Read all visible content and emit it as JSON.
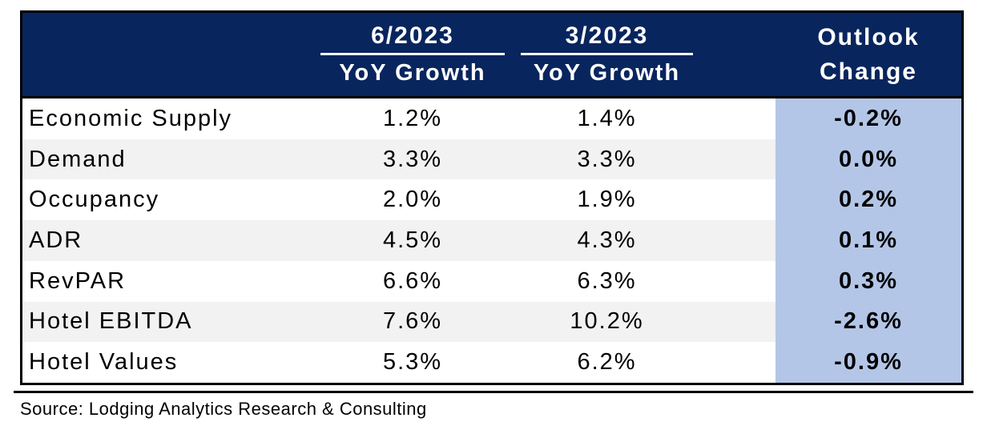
{
  "chart_data": {
    "type": "table",
    "columns": [
      "",
      "6/2023 YoY Growth",
      "3/2023 YoY Growth",
      "Outlook Change"
    ],
    "rows": [
      [
        "Economic Supply",
        "1.2%",
        "1.4%",
        "-0.2%"
      ],
      [
        "Demand",
        "3.3%",
        "3.3%",
        "0.0%"
      ],
      [
        "Occupancy",
        "2.0%",
        "1.9%",
        "0.2%"
      ],
      [
        "ADR",
        "4.5%",
        "4.3%",
        "0.1%"
      ],
      [
        "RevPAR",
        "6.6%",
        "6.3%",
        "0.3%"
      ],
      [
        "Hotel EBITDA",
        "7.6%",
        "10.2%",
        "-2.6%"
      ],
      [
        "Hotel Values",
        "5.3%",
        "6.2%",
        "-0.9%"
      ]
    ],
    "title": "",
    "legend": null,
    "notes": "Outlook Change column highlighted in light blue; alternating row striping"
  },
  "header": {
    "col_jun": {
      "period": "6/2023",
      "sub": "YoY Growth"
    },
    "col_mar": {
      "period": "3/2023",
      "sub": "YoY Growth"
    },
    "col_outlook": {
      "line1": "Outlook",
      "line2": "Change"
    }
  },
  "rows": [
    {
      "label": "Economic Supply",
      "jun": "1.2%",
      "mar": "1.4%",
      "outlook": "-0.2%"
    },
    {
      "label": "Demand",
      "jun": "3.3%",
      "mar": "3.3%",
      "outlook": "0.0%"
    },
    {
      "label": "Occupancy",
      "jun": "2.0%",
      "mar": "1.9%",
      "outlook": "0.2%"
    },
    {
      "label": "ADR",
      "jun": "4.5%",
      "mar": "4.3%",
      "outlook": "0.1%"
    },
    {
      "label": "RevPAR",
      "jun": "6.6%",
      "mar": "6.3%",
      "outlook": "0.3%"
    },
    {
      "label": "Hotel EBITDA",
      "jun": "7.6%",
      "mar": "10.2%",
      "outlook": "-2.6%"
    },
    {
      "label": "Hotel Values",
      "jun": "5.3%",
      "mar": "6.2%",
      "outlook": "-0.9%"
    }
  ],
  "source": "Source: Lodging Analytics Research & Consulting",
  "colors": {
    "header_bg": "#08255e",
    "header_text": "#ffffff",
    "outlook_col_bg": "#b4c6e7",
    "row_stripe": "#f2f2f2",
    "border": "#000000"
  }
}
